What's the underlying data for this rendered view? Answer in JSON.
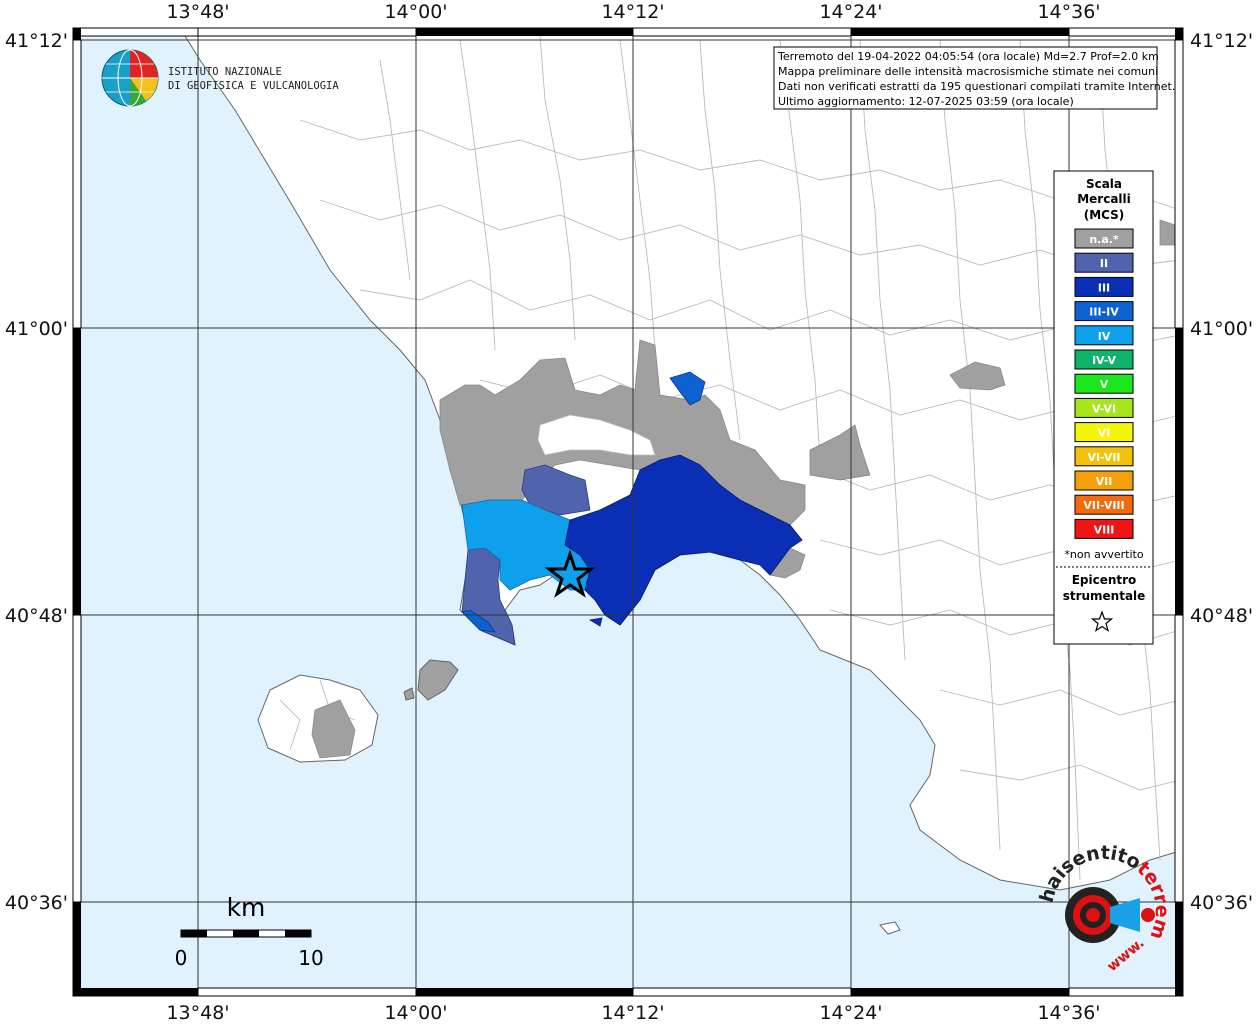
{
  "map": {
    "lon_ticks": [
      "13°48'",
      "14°00'",
      "14°12'",
      "14°24'",
      "14°36'"
    ],
    "lat_ticks": [
      "41°12'",
      "41°00'",
      "40°48'",
      "40°36'"
    ]
  },
  "info_box": {
    "lines": [
      "Terremoto del 19-04-2022 04:05:54 (ora locale) Md=2.7 Prof=2.0 km",
      "Mappa preliminare delle intensità macrosismiche stimate nei comuni",
      "Dati non verificati estratti da 195 questionari compilati tramite Internet.",
      "Ultimo aggiornamento: 12-07-2025 03:59 (ora locale)"
    ]
  },
  "ingv_logo": {
    "line1": "ISTITUTO NAZIONALE",
    "line2": "DI GEOFISICA E VULCANOLOGIA"
  },
  "legend": {
    "title_lines": [
      "Scala",
      "Mercalli",
      "(MCS)"
    ],
    "items": [
      {
        "label": "n.a.*",
        "color": "#a0a0a0"
      },
      {
        "label": "II",
        "color": "#4f64ad"
      },
      {
        "label": "III",
        "color": "#0a2fb4"
      },
      {
        "label": "III-IV",
        "color": "#0d62d2"
      },
      {
        "label": "IV",
        "color": "#0ea0ec"
      },
      {
        "label": "IV-V",
        "color": "#11b36a"
      },
      {
        "label": "V",
        "color": "#1ee61e"
      },
      {
        "label": "V-VI",
        "color": "#a8e61c"
      },
      {
        "label": "VI",
        "color": "#f5f50a"
      },
      {
        "label": "VI-VII",
        "color": "#f5c20a"
      },
      {
        "label": "VII",
        "color": "#f5a00a"
      },
      {
        "label": "VII-VIII",
        "color": "#f56a0a"
      },
      {
        "label": "VIII",
        "color": "#f01414"
      }
    ],
    "note": "*non avvertito",
    "epicenter_lines": [
      "Epicentro",
      "strumentale"
    ]
  },
  "scale_bar": {
    "unit": "km",
    "start": "0",
    "end": "10"
  },
  "hst_logo": {
    "text": "haisentito",
    "text2": "terremoto.it",
    "text3": "www."
  },
  "colors": {
    "sea": "#e0f2fd",
    "land": "#ffffff",
    "grid": "#333333",
    "border": "#bbbbbb"
  }
}
